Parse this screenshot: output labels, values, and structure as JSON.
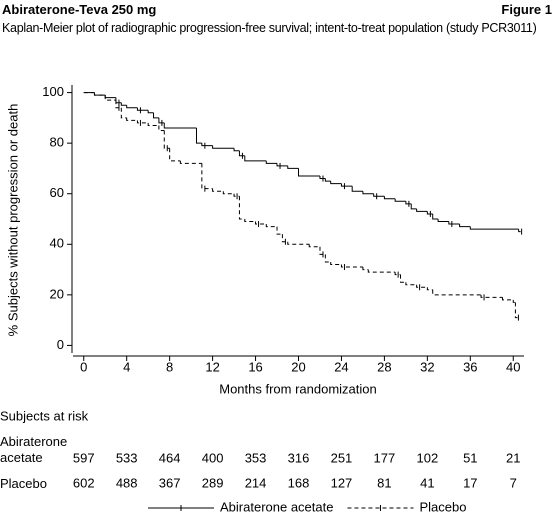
{
  "chart_data": {
    "type": "step",
    "title": "Abiraterone-Teva 250 mg",
    "figure_label": "Figure 1",
    "subtitle": "Kaplan-Meier plot of radiographic progression-free survival; intent-to-treat population (study PCR3011)",
    "xlabel": "Months from randomization",
    "ylabel": "% Subjects without progression or death",
    "xlim": [
      -1,
      41
    ],
    "ylim": [
      -3,
      103
    ],
    "xticks": [
      0,
      4,
      8,
      12,
      16,
      20,
      24,
      28,
      32,
      36,
      40
    ],
    "yticks": [
      0,
      20,
      40,
      60,
      80,
      100
    ],
    "legend": "bottom",
    "series": [
      {
        "name": "Abiraterone acetate",
        "color": "#000000",
        "linestyle": "solid",
        "x": [
          0,
          1,
          2,
          3,
          3.5,
          4,
          5,
          6,
          6.5,
          7,
          7.5,
          10.5,
          11,
          12,
          14,
          14.5,
          15,
          17,
          18,
          19,
          20,
          22,
          22.5,
          23,
          24,
          25,
          26,
          27,
          28,
          29,
          30,
          30.5,
          31,
          32,
          32.5,
          33,
          34,
          35,
          36,
          40.5
        ],
        "values": [
          100,
          99,
          98,
          96,
          95,
          94,
          93,
          92,
          90,
          88,
          86,
          80,
          79,
          78,
          77,
          75,
          73,
          72,
          71,
          70,
          67,
          66,
          65,
          64,
          63,
          61,
          60,
          59,
          58,
          57,
          56,
          54,
          53,
          52,
          50,
          49,
          48,
          47,
          46,
          45
        ]
      },
      {
        "name": "Placebo",
        "color": "#000000",
        "linestyle": "dashed",
        "x": [
          0,
          1,
          2,
          3,
          3.5,
          4,
          5,
          6,
          7,
          7.5,
          8,
          9,
          11,
          12,
          13,
          14,
          14.5,
          15,
          16,
          17,
          18,
          18.5,
          19,
          21,
          22,
          22.5,
          23,
          24,
          26,
          26.5,
          29,
          29.5,
          30,
          31,
          32,
          32.5,
          37,
          39,
          40,
          40.2
        ],
        "values": [
          100,
          99,
          97,
          94,
          90,
          89,
          88,
          87,
          85,
          78,
          73,
          72,
          62,
          61,
          60,
          59,
          50,
          49,
          48,
          47,
          44,
          41,
          40,
          39,
          36,
          33,
          32,
          31,
          30,
          29,
          28,
          25,
          24,
          23,
          22,
          20,
          19,
          18,
          17,
          11
        ]
      }
    ],
    "risk_table": {
      "title": "Subjects at risk",
      "rows": [
        {
          "label": "Abiraterone acetate",
          "values": [
            597,
            533,
            464,
            400,
            353,
            316,
            251,
            177,
            102,
            51,
            21
          ]
        },
        {
          "label": "Placebo",
          "values": [
            602,
            488,
            367,
            289,
            214,
            168,
            127,
            81,
            41,
            17,
            7
          ]
        }
      ]
    }
  }
}
